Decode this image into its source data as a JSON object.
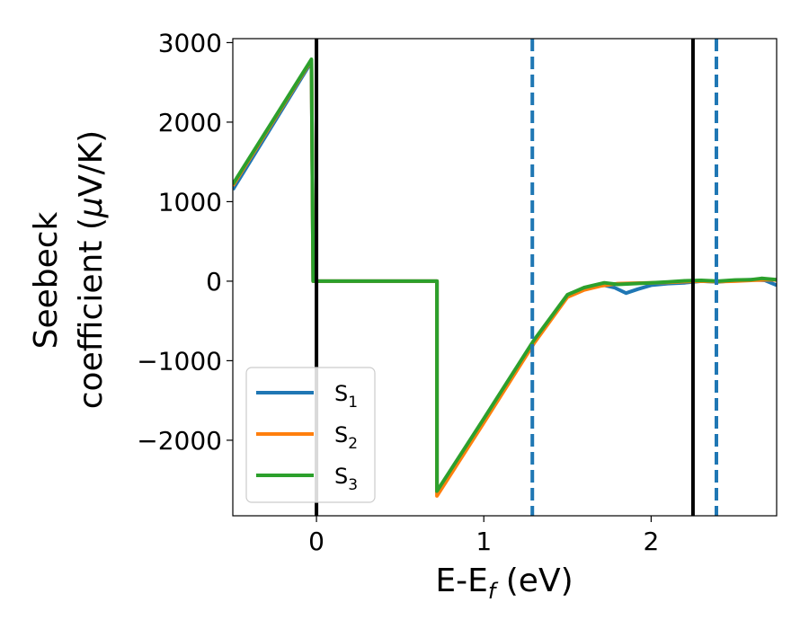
{
  "chart_data": {
    "type": "line",
    "xlabel": {
      "main": "E-E",
      "sub": "f",
      "rest": " (eV)"
    },
    "ylabel": {
      "line1": "Seebeck",
      "line2": "coefficient  (",
      "mu": "μ",
      "line2_end": "V/K)"
    },
    "xlim": [
      -0.5,
      2.75
    ],
    "ylim": [
      -2950,
      3050
    ],
    "x_ticks": [
      0,
      1,
      2
    ],
    "x_tick_labels": [
      "0",
      "1",
      "2"
    ],
    "y_ticks": [
      -2000,
      -1000,
      0,
      1000,
      2000,
      3000
    ],
    "y_tick_labels": [
      "−2000",
      "−1000",
      "0",
      "1000",
      "2000",
      "3000"
    ],
    "grid": false,
    "legend_position": "lower-left",
    "vlines": [
      {
        "x": 0.0,
        "style": "solid",
        "color": "#000000"
      },
      {
        "x": 2.25,
        "style": "solid",
        "color": "#000000"
      },
      {
        "x": 1.29,
        "style": "dashed",
        "color": "#1f77b4"
      },
      {
        "x": 2.39,
        "style": "dashed",
        "color": "#1f77b4"
      }
    ],
    "series": [
      {
        "name": "S1",
        "label_main": "S",
        "label_sub": "1",
        "color": "#1f77b4",
        "points": [
          [
            -0.5,
            1150
          ],
          [
            -0.03,
            2760
          ],
          [
            -0.02,
            0
          ],
          [
            0.72,
            0
          ],
          [
            0.72,
            -2650
          ],
          [
            1.0,
            -1750
          ],
          [
            1.3,
            -750
          ],
          [
            1.5,
            -180
          ],
          [
            1.6,
            -90
          ],
          [
            1.7,
            -40
          ],
          [
            1.78,
            -80
          ],
          [
            1.85,
            -150
          ],
          [
            1.92,
            -100
          ],
          [
            2.0,
            -50
          ],
          [
            2.1,
            -30
          ],
          [
            2.2,
            -20
          ],
          [
            2.3,
            0
          ],
          [
            2.4,
            -10
          ],
          [
            2.5,
            10
          ],
          [
            2.6,
            20
          ],
          [
            2.68,
            10
          ],
          [
            2.75,
            -50
          ]
        ]
      },
      {
        "name": "S2",
        "label_main": "S",
        "label_sub": "2",
        "color": "#ff7f0e",
        "points": [
          [
            -0.5,
            1200
          ],
          [
            -0.03,
            2780
          ],
          [
            -0.02,
            0
          ],
          [
            0.72,
            0
          ],
          [
            0.72,
            -2700
          ],
          [
            1.0,
            -1780
          ],
          [
            1.3,
            -780
          ],
          [
            1.5,
            -200
          ],
          [
            1.6,
            -110
          ],
          [
            1.7,
            -60
          ],
          [
            1.8,
            -30
          ],
          [
            1.9,
            -25
          ],
          [
            2.0,
            -20
          ],
          [
            2.1,
            -15
          ],
          [
            2.2,
            -5
          ],
          [
            2.3,
            0
          ],
          [
            2.4,
            -5
          ],
          [
            2.5,
            0
          ],
          [
            2.6,
            10
          ],
          [
            2.7,
            20
          ],
          [
            2.75,
            15
          ]
        ]
      },
      {
        "name": "S3",
        "label_main": "S",
        "label_sub": "3",
        "color": "#2ca02c",
        "points": [
          [
            -0.5,
            1220
          ],
          [
            -0.03,
            2790
          ],
          [
            -0.02,
            0
          ],
          [
            0.72,
            0
          ],
          [
            0.72,
            -2640
          ],
          [
            1.0,
            -1730
          ],
          [
            1.3,
            -740
          ],
          [
            1.5,
            -170
          ],
          [
            1.6,
            -80
          ],
          [
            1.72,
            -20
          ],
          [
            1.8,
            -40
          ],
          [
            1.9,
            -30
          ],
          [
            2.0,
            -20
          ],
          [
            2.1,
            -10
          ],
          [
            2.2,
            5
          ],
          [
            2.3,
            10
          ],
          [
            2.4,
            0
          ],
          [
            2.5,
            15
          ],
          [
            2.6,
            20
          ],
          [
            2.66,
            35
          ],
          [
            2.75,
            20
          ]
        ]
      }
    ]
  }
}
